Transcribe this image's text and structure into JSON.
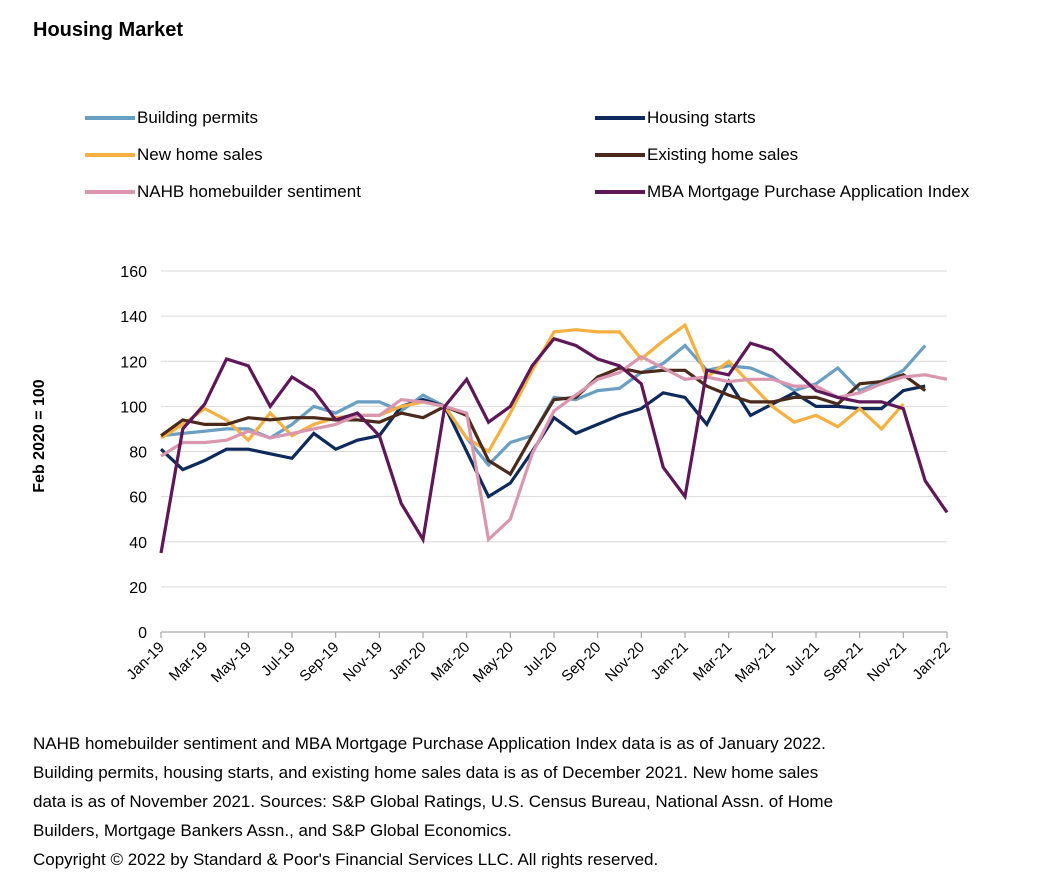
{
  "chart_data": {
    "type": "line",
    "title": "Housing Market",
    "xlabel": "",
    "ylabel": "Feb 2020 = 100",
    "ylim": [
      0,
      160
    ],
    "yticks": [
      0,
      20,
      40,
      60,
      80,
      100,
      120,
      140,
      160
    ],
    "grid": true,
    "legend_position": "top",
    "x": [
      "Jan-19",
      "Feb-19",
      "Mar-19",
      "Apr-19",
      "May-19",
      "Jun-19",
      "Jul-19",
      "Aug-19",
      "Sep-19",
      "Oct-19",
      "Nov-19",
      "Dec-19",
      "Jan-20",
      "Feb-20",
      "Mar-20",
      "Apr-20",
      "May-20",
      "Jun-20",
      "Jul-20",
      "Aug-20",
      "Sep-20",
      "Oct-20",
      "Nov-20",
      "Dec-20",
      "Jan-21",
      "Feb-21",
      "Mar-21",
      "Apr-21",
      "May-21",
      "Jun-21",
      "Jul-21",
      "Aug-21",
      "Sep-21",
      "Oct-21",
      "Nov-21",
      "Dec-21",
      "Jan-22"
    ],
    "xtick_labels": [
      "Jan-19",
      "Mar-19",
      "May-19",
      "Jul-19",
      "Sep-19",
      "Nov-19",
      "Jan-20",
      "Mar-20",
      "May-20",
      "Jul-20",
      "Sep-20",
      "Nov-20",
      "Jan-21",
      "Mar-21",
      "May-21",
      "Jul-21",
      "Sep-21",
      "Nov-21",
      "Jan-22"
    ],
    "series": [
      {
        "name": "Building permits",
        "color": "#6a9fc4",
        "values": [
          87,
          88,
          89,
          90,
          90,
          86,
          92,
          100,
          97,
          102,
          102,
          98,
          105,
          100,
          86,
          74,
          84,
          87,
          104,
          103,
          107,
          108,
          115,
          119,
          127,
          116,
          118,
          117,
          113,
          107,
          110,
          117,
          107,
          111,
          116,
          127,
          null
        ]
      },
      {
        "name": "Housing starts",
        "color": "#0e2a5c",
        "values": [
          81,
          72,
          76,
          81,
          81,
          79,
          77,
          88,
          81,
          85,
          87,
          100,
          103,
          100,
          80,
          60,
          66,
          80,
          95,
          88,
          92,
          96,
          99,
          106,
          104,
          92,
          111,
          96,
          101,
          106,
          100,
          100,
          99,
          99,
          107,
          109,
          null
        ]
      },
      {
        "name": "New home sales",
        "color": "#f5b041",
        "values": [
          86,
          92,
          99,
          94,
          85,
          97,
          87,
          92,
          95,
          96,
          96,
          100,
          102,
          100,
          86,
          80,
          97,
          116,
          133,
          134,
          133,
          133,
          121,
          129,
          136,
          113,
          120,
          110,
          100,
          93,
          96,
          91,
          99,
          90,
          101,
          null,
          null
        ]
      },
      {
        "name": "Existing home sales",
        "color": "#4b2a1c",
        "values": [
          87,
          94,
          92,
          92,
          95,
          94,
          95,
          95,
          94,
          94,
          93,
          97,
          95,
          100,
          96,
          76,
          70,
          87,
          103,
          104,
          113,
          117,
          115,
          116,
          116,
          109,
          105,
          102,
          102,
          104,
          104,
          101,
          110,
          111,
          114,
          107,
          null
        ]
      },
      {
        "name": "NAHB homebuilder sentiment",
        "color": "#d996ae",
        "values": [
          78,
          84,
          84,
          85,
          89,
          86,
          88,
          90,
          92,
          96,
          96,
          103,
          102,
          100,
          97,
          41,
          50,
          79,
          98,
          105,
          112,
          115,
          122,
          117,
          112,
          113,
          111,
          112,
          112,
          109,
          109,
          104,
          106,
          110,
          113,
          114,
          112
        ]
      },
      {
        "name": "MBA Mortgage Purchase Application Index",
        "color": "#5e1757",
        "values": [
          35,
          90,
          101,
          121,
          118,
          100,
          113,
          107,
          94,
          97,
          87,
          57,
          41,
          100,
          112,
          93,
          100,
          118,
          130,
          127,
          121,
          118,
          110,
          73,
          60,
          116,
          114,
          128,
          125,
          116,
          107,
          104,
          102,
          102,
          99,
          67,
          53
        ]
      }
    ]
  },
  "legend": [
    {
      "label": "Building permits",
      "color": "#6a9fc4"
    },
    {
      "label": "Housing starts",
      "color": "#0e2a5c"
    },
    {
      "label": "New home sales",
      "color": "#f5b041"
    },
    {
      "label": "Existing home sales",
      "color": "#4b2a1c"
    },
    {
      "label": "NAHB homebuilder sentiment",
      "color": "#d996ae"
    },
    {
      "label": "MBA Mortgage Purchase Application Index",
      "color": "#5e1757"
    }
  ],
  "footnote": {
    "lines": [
      "NAHB homebuilder sentiment and MBA Mortgage Purchase Application Index data is as of January 2022.",
      "Building permits, housing starts, and existing home sales data is as of December 2021. New home sales",
      "data is as of November 2021. Sources: S&P Global Ratings, U.S. Census Bureau, National Assn. of Home",
      "Builders, Mortgage Bankers Assn., and S&P Global Economics.",
      "Copyright © 2022 by Standard & Poor's Financial Services LLC. All rights reserved."
    ]
  }
}
